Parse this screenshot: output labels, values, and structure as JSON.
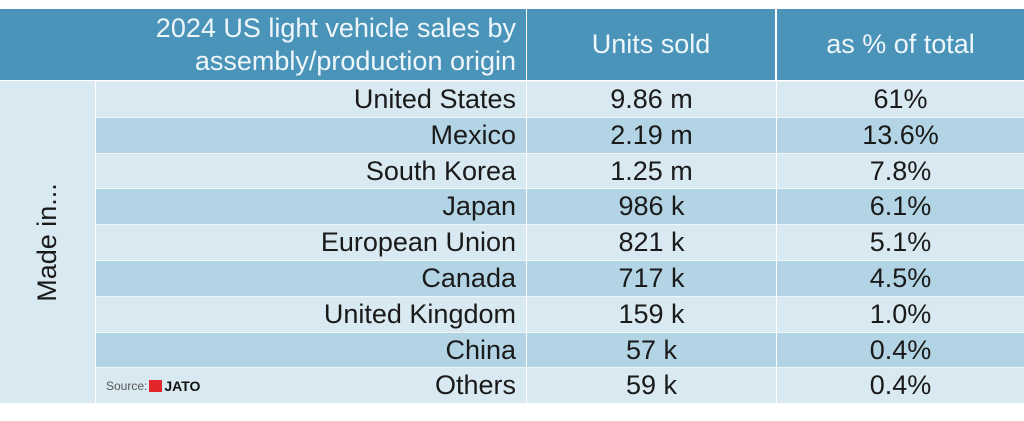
{
  "chart_data": {
    "type": "table",
    "title": "2024 US light vehicle sales by assembly/production origin",
    "columns": [
      "2024 US light vehicle sales by assembly/production origin",
      "Units sold",
      "as % of total"
    ],
    "row_group_label": "Made in...",
    "rows": [
      {
        "origin": "United States",
        "units": "9.86 m",
        "pct": "61%"
      },
      {
        "origin": "Mexico",
        "units": "2.19 m",
        "pct": "13.6%"
      },
      {
        "origin": "South Korea",
        "units": "1.25 m",
        "pct": "7.8%"
      },
      {
        "origin": "Japan",
        "units": "986 k",
        "pct": "6.1%"
      },
      {
        "origin": "European Union",
        "units": "821 k",
        "pct": "5.1%"
      },
      {
        "origin": "Canada",
        "units": "717 k",
        "pct": "4.5%"
      },
      {
        "origin": "United Kingdom",
        "units": "159 k",
        "pct": "1.0%"
      },
      {
        "origin": "China",
        "units": "57 k",
        "pct": "0.4%"
      },
      {
        "origin": "Others",
        "units": "59 k",
        "pct": "0.4%"
      }
    ],
    "source_label": "Source:",
    "source_logo": "JATO",
    "colors": {
      "header": "#4a94ba",
      "row_light": "#d9e9f2",
      "row_dark": "#b3d4e5"
    }
  }
}
